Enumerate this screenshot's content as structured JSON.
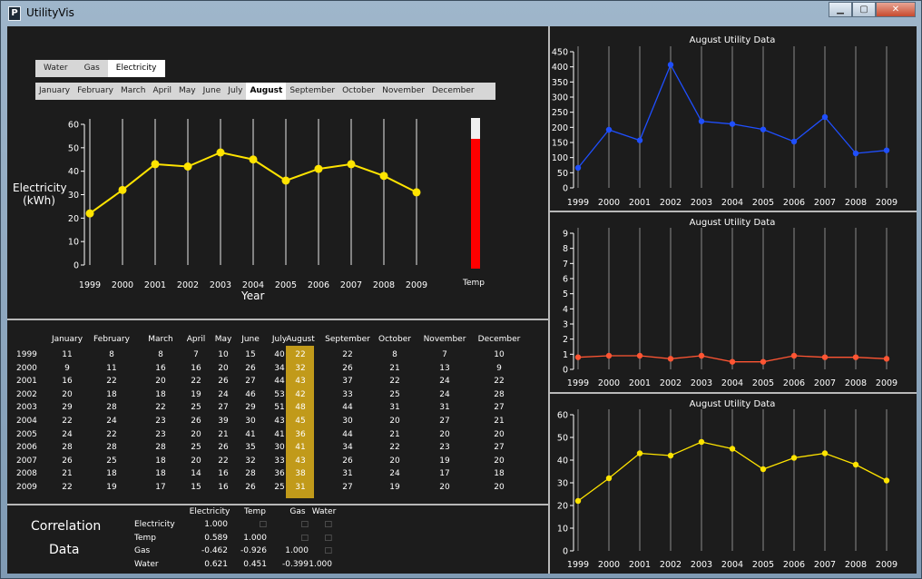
{
  "window": {
    "title": "UtilityVis",
    "icon": "P"
  },
  "utility_tabs": [
    {
      "label": "Water"
    },
    {
      "label": "Gas"
    },
    {
      "label": "Electricity"
    }
  ],
  "selected_utility": "Electricity",
  "month_tabs": [
    {
      "label": "January"
    },
    {
      "label": "February"
    },
    {
      "label": "March"
    },
    {
      "label": "April"
    },
    {
      "label": "May"
    },
    {
      "label": "June"
    },
    {
      "label": "July"
    },
    {
      "label": "August"
    },
    {
      "label": "September"
    },
    {
      "label": "October"
    },
    {
      "label": "November"
    },
    {
      "label": "December"
    }
  ],
  "selected_month": "August",
  "main_chart": {
    "ylabel_line1": "Electricity",
    "ylabel_line2": "(kWh)",
    "xlabel": "Year",
    "temp_label": "Temp",
    "temp_level": 0.86
  },
  "colors": {
    "electricity": "#ffe400",
    "water": "#1f4fff",
    "gas": "#ff5533",
    "temp": "#ff0000",
    "highlight": "#c19a1a"
  },
  "chart_data": [
    {
      "type": "line",
      "x": [
        "1999",
        "2000",
        "2001",
        "2002",
        "2003",
        "2004",
        "2005",
        "2006",
        "2007",
        "2008",
        "2009"
      ],
      "series": [
        {
          "values": [
            22,
            32,
            43,
            42,
            48,
            45,
            36,
            41,
            43,
            38,
            31
          ]
        }
      ],
      "ylabel": "Electricity (kWh)",
      "xlabel": "Year",
      "ylim": [
        0,
        60
      ]
    },
    {
      "type": "line",
      "title": "August Utility Data",
      "x": [
        "1999",
        "2000",
        "2001",
        "2002",
        "2003",
        "2004",
        "2005",
        "2006",
        "2007",
        "2008",
        "2009"
      ],
      "series": [
        {
          "values": [
            66,
            192,
            157,
            407,
            220,
            211,
            193,
            153,
            234,
            114,
            124
          ]
        }
      ],
      "ylim": [
        0,
        450
      ]
    },
    {
      "type": "line",
      "title": "August Utility Data",
      "x": [
        "1999",
        "2000",
        "2001",
        "2002",
        "2003",
        "2004",
        "2005",
        "2006",
        "2007",
        "2008",
        "2009"
      ],
      "series": [
        {
          "values": [
            0.8,
            0.9,
            0.9,
            0.7,
            0.9,
            0.5,
            0.5,
            0.9,
            0.8,
            0.8,
            0.7
          ]
        }
      ],
      "ylim": [
        0,
        9
      ]
    },
    {
      "type": "line",
      "title": "August Utility Data",
      "x": [
        "1999",
        "2000",
        "2001",
        "2002",
        "2003",
        "2004",
        "2005",
        "2006",
        "2007",
        "2008",
        "2009"
      ],
      "series": [
        {
          "values": [
            22,
            32,
            43,
            42,
            48,
            45,
            36,
            41,
            43,
            38,
            31
          ]
        }
      ],
      "ylim": [
        0,
        60
      ]
    }
  ],
  "table": {
    "headers": [
      "January",
      "February",
      "March",
      "April",
      "May",
      "June",
      "July",
      "August",
      "September",
      "October",
      "November",
      "December"
    ],
    "rows": [
      {
        "year": "1999",
        "values": [
          "11",
          "8",
          "8",
          "7",
          "10",
          "15",
          "40",
          "22",
          "22",
          "8",
          "7",
          "10"
        ]
      },
      {
        "year": "2000",
        "values": [
          "9",
          "11",
          "16",
          "16",
          "20",
          "26",
          "34",
          "32",
          "26",
          "21",
          "13",
          "9"
        ]
      },
      {
        "year": "2001",
        "values": [
          "16",
          "22",
          "20",
          "22",
          "26",
          "27",
          "44",
          "43",
          "37",
          "22",
          "24",
          "22"
        ]
      },
      {
        "year": "2002",
        "values": [
          "20",
          "18",
          "18",
          "19",
          "24",
          "46",
          "53",
          "42",
          "33",
          "25",
          "24",
          "28"
        ]
      },
      {
        "year": "2003",
        "values": [
          "29",
          "28",
          "22",
          "25",
          "27",
          "29",
          "51",
          "48",
          "44",
          "31",
          "31",
          "27"
        ]
      },
      {
        "year": "2004",
        "values": [
          "22",
          "24",
          "23",
          "26",
          "39",
          "30",
          "43",
          "45",
          "30",
          "20",
          "27",
          "21"
        ]
      },
      {
        "year": "2005",
        "values": [
          "24",
          "22",
          "23",
          "20",
          "21",
          "41",
          "41",
          "36",
          "44",
          "21",
          "20",
          "20"
        ]
      },
      {
        "year": "2006",
        "values": [
          "28",
          "28",
          "28",
          "25",
          "26",
          "35",
          "30",
          "41",
          "34",
          "22",
          "23",
          "27"
        ]
      },
      {
        "year": "2007",
        "values": [
          "26",
          "25",
          "18",
          "20",
          "22",
          "32",
          "33",
          "43",
          "26",
          "20",
          "19",
          "20"
        ]
      },
      {
        "year": "2008",
        "values": [
          "21",
          "18",
          "18",
          "14",
          "16",
          "28",
          "36",
          "38",
          "31",
          "24",
          "17",
          "18"
        ]
      },
      {
        "year": "2009",
        "values": [
          "22",
          "19",
          "17",
          "15",
          "16",
          "26",
          "25",
          "31",
          "27",
          "19",
          "20",
          "20"
        ]
      }
    ]
  },
  "correlation": {
    "title_line1": "Correlation",
    "title_line2": "Data",
    "headers": [
      "Electricity",
      "Temp",
      "Gas",
      "Water"
    ],
    "rows": [
      {
        "label": "Electricity",
        "values": [
          "1.000",
          "□",
          "□",
          "□"
        ]
      },
      {
        "label": "Temp",
        "values": [
          "0.589",
          "1.000",
          "□",
          "□"
        ]
      },
      {
        "label": "Gas",
        "values": [
          "-0.462",
          "-0.926",
          "1.000",
          "□"
        ]
      },
      {
        "label": "Water",
        "values": [
          "0.621",
          "0.451",
          "-0.399",
          "1.000"
        ]
      }
    ]
  }
}
